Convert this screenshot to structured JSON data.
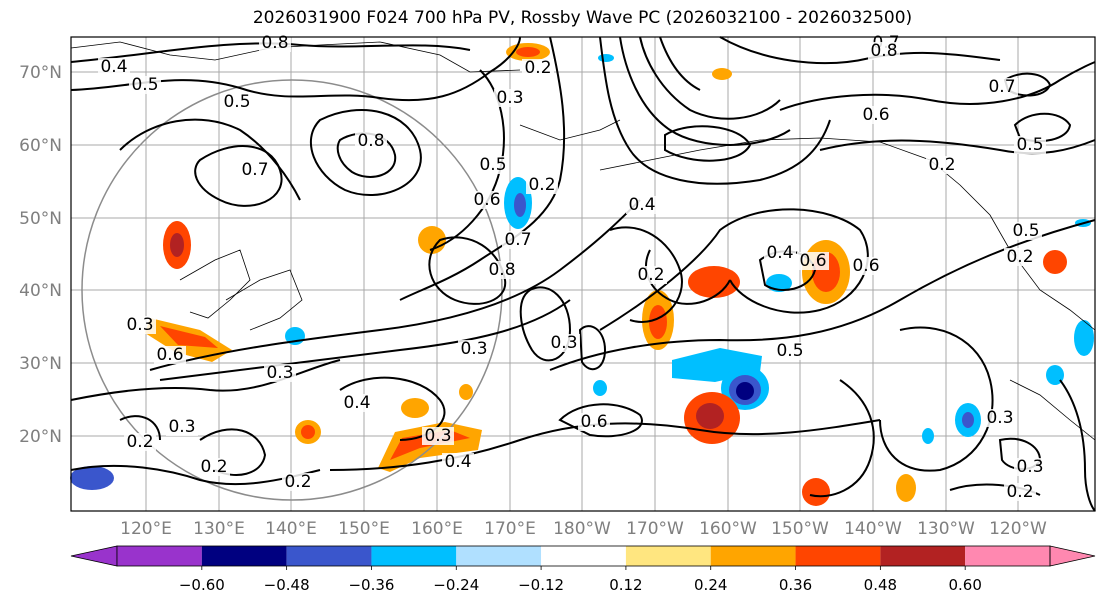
{
  "title": "2026031900 F024 700 hPa PV, Rossby Wave PC (2026032100 - 2026032500)",
  "lat_labels": [
    "70°N",
    "60°N",
    "50°N",
    "40°N",
    "30°N",
    "20°N"
  ],
  "lon_labels": [
    "120°E",
    "130°E",
    "140°E",
    "150°E",
    "160°E",
    "170°E",
    "180°W",
    "170°W",
    "160°W",
    "150°W",
    "140°W",
    "130°W",
    "120°W"
  ],
  "colorbar": {
    "ticks": [
      "−0.60",
      "−0.48",
      "−0.36",
      "−0.24",
      "−0.12",
      "0.12",
      "0.24",
      "0.36",
      "0.48",
      "0.60"
    ],
    "colors": [
      "#9933cc",
      "#000080",
      "#3a56cc",
      "#00bfff",
      "#b0e0ff",
      "#ffffff",
      "#ffe680",
      "#ffa500",
      "#ff4500",
      "#b22222",
      "#ff88b0"
    ]
  },
  "contour_labels": [
    {
      "text": "0.8"
    },
    {
      "text": "0.4"
    },
    {
      "text": "0.5"
    },
    {
      "text": "0.5"
    },
    {
      "text": "0.7"
    },
    {
      "text": "0.8"
    },
    {
      "text": "0.2"
    },
    {
      "text": "0.3"
    },
    {
      "text": "0.5"
    },
    {
      "text": "0.6"
    },
    {
      "text": "0.7"
    },
    {
      "text": "0.8"
    },
    {
      "text": "0.2"
    },
    {
      "text": "0.4"
    },
    {
      "text": "0.2"
    },
    {
      "text": "0.4"
    },
    {
      "text": "0.6"
    },
    {
      "text": "0.6"
    },
    {
      "text": "0.5"
    },
    {
      "text": "0.3"
    },
    {
      "text": "0.3"
    },
    {
      "text": "0.4"
    },
    {
      "text": "0.3"
    },
    {
      "text": "0.4"
    },
    {
      "text": "0.2"
    },
    {
      "text": "0.6"
    },
    {
      "text": "0.3"
    },
    {
      "text": "0.2"
    },
    {
      "text": "0.2"
    },
    {
      "text": "0.3"
    },
    {
      "text": "0.7"
    },
    {
      "text": "0.8"
    },
    {
      "text": "0.7"
    },
    {
      "text": "0.5"
    },
    {
      "text": "0.2"
    },
    {
      "text": "0.5"
    },
    {
      "text": "0.2"
    },
    {
      "text": "0.6"
    },
    {
      "text": "0.3"
    },
    {
      "text": "0.3"
    },
    {
      "text": "0.2"
    },
    {
      "text": "0.3"
    },
    {
      "text": "0.6"
    }
  ]
}
